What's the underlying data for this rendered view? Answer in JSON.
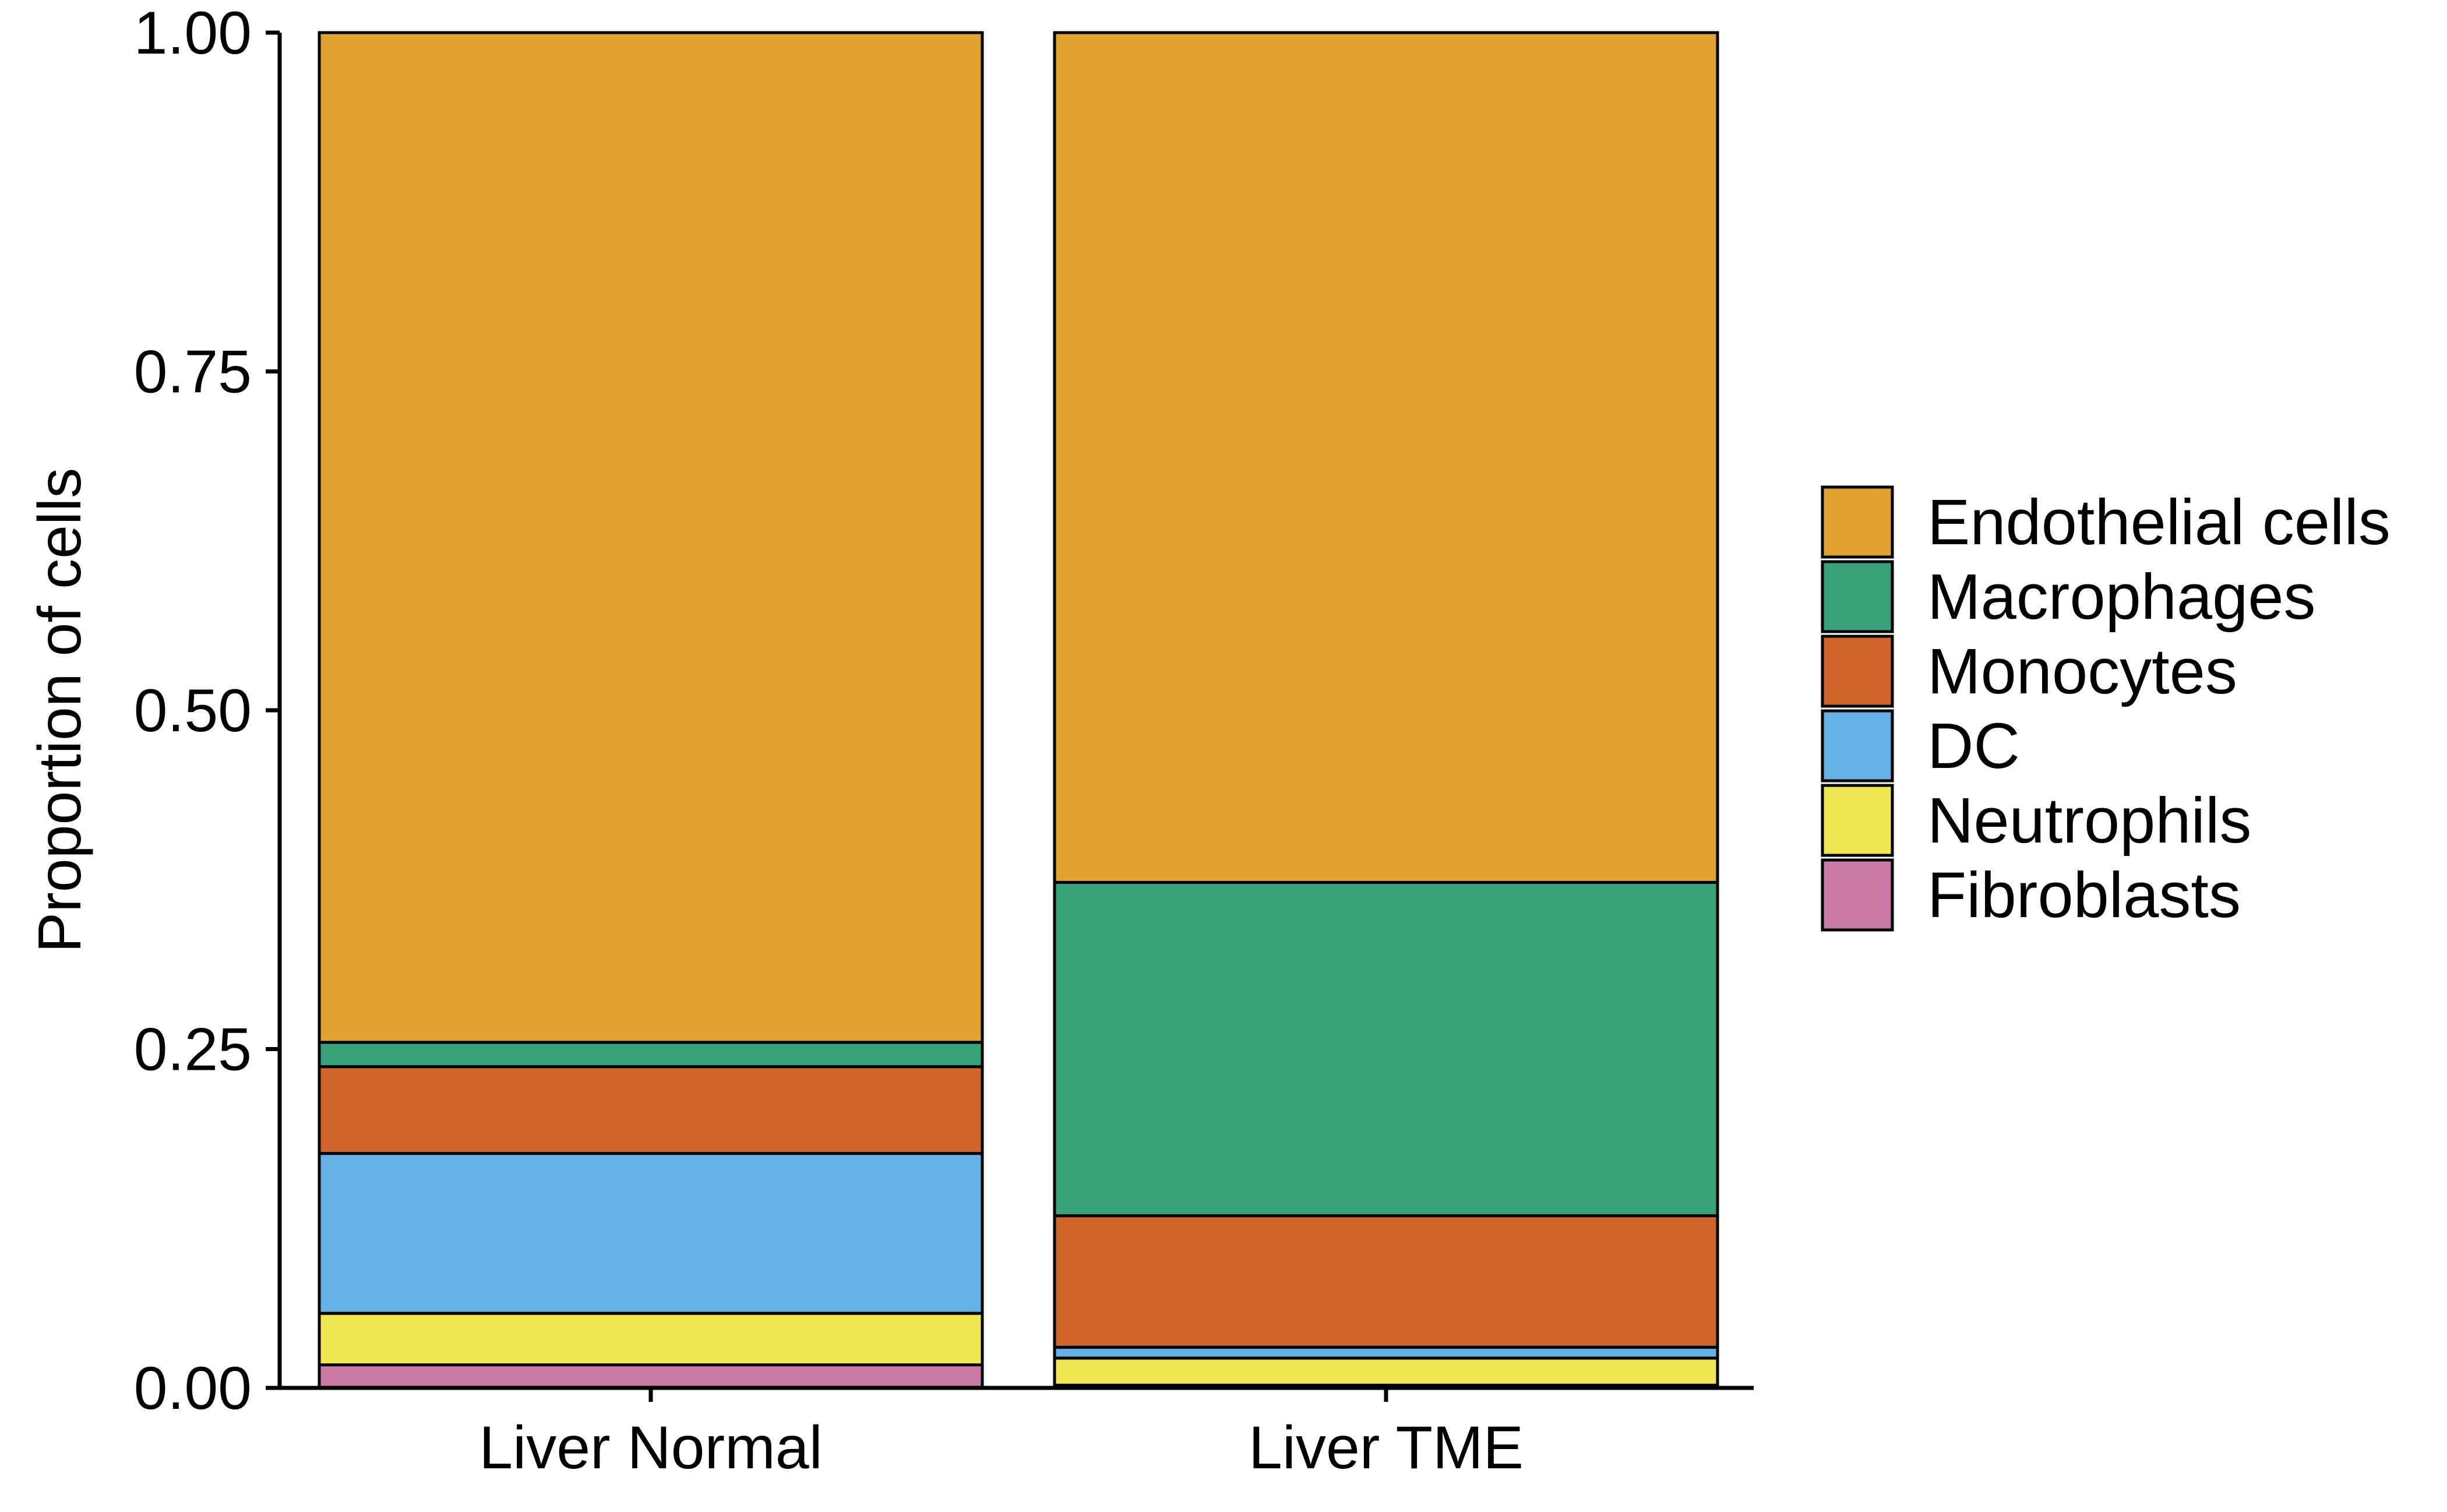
{
  "chart_data": {
    "type": "bar",
    "stacked": true,
    "title": "",
    "xlabel": "",
    "ylabel": "Proportion of cells",
    "ylim": [
      0,
      1
    ],
    "yticks": [
      {
        "value": 0,
        "label": "0.00"
      },
      {
        "value": 0.25,
        "label": "0.25"
      },
      {
        "value": 0.5,
        "label": "0.50"
      },
      {
        "value": 0.75,
        "label": "0.75"
      },
      {
        "value": 1,
        "label": "1.00"
      }
    ],
    "categories": [
      "Liver Normal",
      "Liver TME"
    ],
    "series": [
      {
        "name": "Endothelial cells",
        "color": "#E1A12E",
        "values": [
          0.745,
          0.627
        ]
      },
      {
        "name": "Macrophages",
        "color": "#37A179",
        "values": [
          0.018,
          0.246
        ]
      },
      {
        "name": "Monocytes",
        "color": "#D1642A",
        "values": [
          0.064,
          0.097
        ]
      },
      {
        "name": "DC",
        "color": "#63B1E7",
        "values": [
          0.118,
          0.008
        ]
      },
      {
        "name": "Neutrophils",
        "color": "#EFE652",
        "values": [
          0.038,
          0.02
        ]
      },
      {
        "name": "Fibroblasts",
        "color": "#C879A5",
        "values": [
          0.017,
          0.002
        ]
      }
    ],
    "stack_order_bottom_to_top": [
      "Fibroblasts",
      "Neutrophils",
      "DC",
      "Monocytes",
      "Macrophages",
      "Endothelial cells"
    ],
    "legend_position": "right",
    "grid": false
  }
}
